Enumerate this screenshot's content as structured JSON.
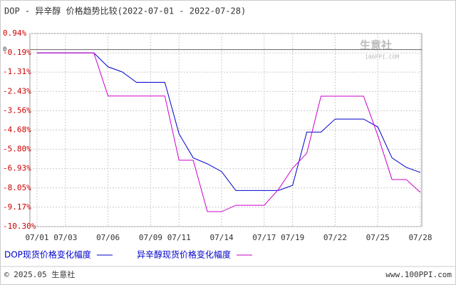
{
  "chart_data": {
    "type": "line",
    "title": "DOP - 异辛醇 价格趋势比较(2022-07-01 - 2022-07-28)",
    "categories": [
      "07/01",
      null,
      "07/03",
      null,
      null,
      "07/06",
      null,
      null,
      "07/09",
      null,
      "07/11",
      null,
      null,
      "07/14",
      null,
      null,
      "07/17",
      null,
      "07/19",
      null,
      null,
      "07/22",
      null,
      null,
      "07/25",
      null,
      null,
      "07/28"
    ],
    "series": [
      {
        "name": "DOP现货价格变化幅度",
        "color": "#0000cc",
        "values": [
          -0.19,
          -0.19,
          -0.19,
          -0.19,
          -0.19,
          -1.0,
          -1.3,
          -1.9,
          -1.9,
          -1.9,
          -4.9,
          -6.3,
          -6.65,
          -7.1,
          -8.2,
          -8.2,
          -8.2,
          -8.2,
          -7.9,
          -4.8,
          -4.8,
          -4.04,
          -4.04,
          -4.04,
          -4.5,
          -6.3,
          -6.85,
          -7.15
        ]
      },
      {
        "name": "异辛醇现货价格变化幅度",
        "color": "#cc00cc",
        "values": [
          -0.19,
          -0.19,
          -0.19,
          -0.19,
          -0.19,
          -2.7,
          -2.7,
          -2.7,
          -2.7,
          -2.7,
          -6.44,
          -6.44,
          -9.43,
          -9.43,
          -9.06,
          -9.06,
          -9.06,
          -8.14,
          -6.9,
          -6.03,
          -2.71,
          -2.71,
          -2.71,
          -2.71,
          -4.99,
          -7.56,
          -7.56,
          -8.31
        ]
      }
    ],
    "ylim": [
      -10.3,
      0.94
    ],
    "yticks": [
      {
        "value": 0.94,
        "label": "0.94%"
      },
      {
        "value": -0.19,
        "label": "-0.19%"
      },
      {
        "value": -1.31,
        "label": "-1.31%"
      },
      {
        "value": -2.43,
        "label": "-2.43%"
      },
      {
        "value": -3.56,
        "label": "-3.56%"
      },
      {
        "value": -4.68,
        "label": "-4.68%"
      },
      {
        "value": -5.8,
        "label": "-5.80%"
      },
      {
        "value": -6.93,
        "label": "-6.93%"
      },
      {
        "value": -8.05,
        "label": "-8.05%"
      },
      {
        "value": -9.17,
        "label": "-9.17%"
      },
      {
        "value": -10.3,
        "label": "-10.30%"
      }
    ],
    "zero_line": 0,
    "grid": true,
    "watermark": "生意社",
    "watermark_sub": "100PPI.COM",
    "footer_left": "© 2025.05 生意社",
    "footer_right": "www.100PPI.com"
  }
}
